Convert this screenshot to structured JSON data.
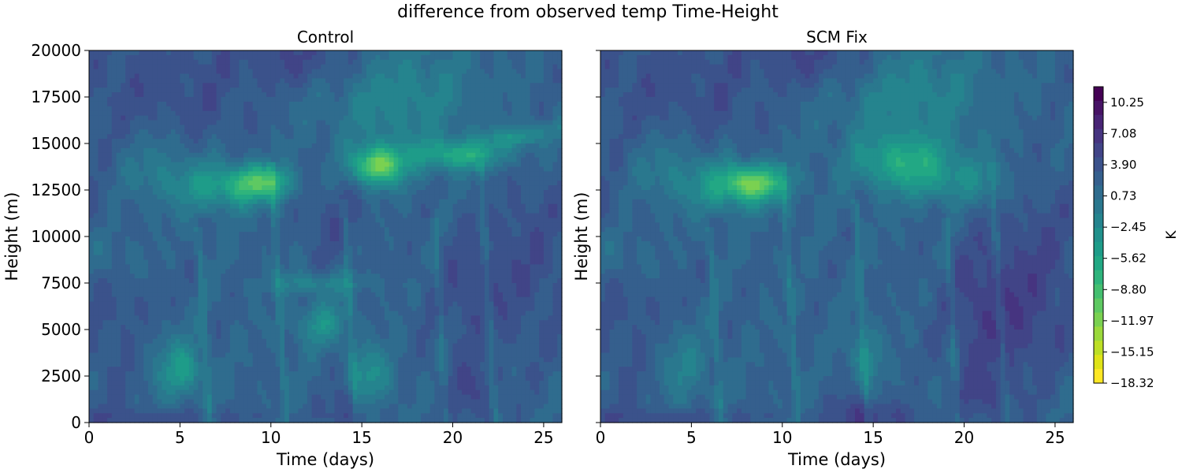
{
  "chart_data": {
    "type": "heatmap",
    "title": "difference from observed temp Time-Height",
    "panels": [
      {
        "title": "Control",
        "xlabel": "Time (days)",
        "ylabel": "Height (m)",
        "variant": "control"
      },
      {
        "title": "SCM Fix",
        "xlabel": "Time (days)",
        "ylabel": "Height (m)",
        "variant": "fix"
      }
    ],
    "xlim": [
      0,
      26
    ],
    "ylim": [
      0,
      20000
    ],
    "xticks": [
      0,
      5,
      10,
      15,
      20,
      25
    ],
    "yticks": [
      0,
      2500,
      5000,
      7500,
      10000,
      12500,
      15000,
      17500,
      20000
    ],
    "yticklabels": [
      "0",
      "2500",
      "5000",
      "7500",
      "10000",
      "12500",
      "15000",
      "17500",
      "20000"
    ],
    "colorbar": {
      "label": "K",
      "range": [
        -18.32,
        11.84
      ],
      "ticks": [
        10.25,
        7.08,
        3.9,
        0.73,
        -2.45,
        -5.62,
        -8.8,
        -11.97,
        -15.15,
        -18.32
      ],
      "ticklabels": [
        "10.25",
        "7.08",
        "3.90",
        "0.73",
        "−2.45",
        "−5.62",
        "−8.80",
        "−11.97",
        "−15.15",
        "−18.32"
      ],
      "colors_top_to_bottom": [
        "#440154",
        "#471365",
        "#482475",
        "#463480",
        "#414487",
        "#3b528b",
        "#355f8d",
        "#2f6c8e",
        "#2a788e",
        "#25848e",
        "#21918c",
        "#1e9c89",
        "#22a884",
        "#2fb47c",
        "#44bf70",
        "#5ec962",
        "#7ad151",
        "#9bd93c",
        "#bddf26",
        "#dfe318",
        "#fde725"
      ]
    }
  }
}
